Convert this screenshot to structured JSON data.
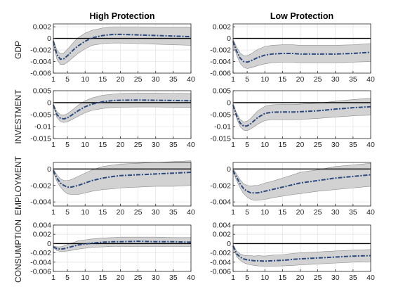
{
  "figure": {
    "columns": [
      "High Protection",
      "Low Protection"
    ],
    "rows": [
      "GDP",
      "INVESTMENT",
      "EMPLOYMENT",
      "CONSUMPTION"
    ]
  },
  "chart_data": [
    {
      "type": "line",
      "panel": "gdp-high",
      "column": "High Protection",
      "ylabel": "GDP",
      "xlim": [
        1,
        40
      ],
      "ylim": [
        -0.006,
        0.0025
      ],
      "xticks": [
        1,
        5,
        10,
        15,
        20,
        25,
        30,
        35,
        40
      ],
      "yticks": [
        0.002,
        0,
        -0.002,
        -0.004,
        -0.006
      ],
      "ytick_labels": [
        "0.002",
        "0",
        "-0.002",
        "-0.004",
        "-0.006"
      ],
      "grid": true,
      "series": [
        {
          "x": [
            1,
            2,
            3,
            4,
            5,
            6,
            7,
            8,
            10,
            12,
            15,
            18,
            20,
            25,
            30,
            35,
            40
          ],
          "values": [
            -0.0005,
            -0.0028,
            -0.0036,
            -0.0035,
            -0.003,
            -0.0024,
            -0.0018,
            -0.0013,
            -0.0005,
            0.0001,
            0.0005,
            0.0007,
            0.0007,
            0.0006,
            0.0005,
            0.0004,
            0.0003
          ],
          "lower": [
            -0.0008,
            -0.0036,
            -0.0045,
            -0.0045,
            -0.0041,
            -0.0036,
            -0.0031,
            -0.0026,
            -0.0018,
            -0.0012,
            -0.0009,
            -0.0008,
            -0.0008,
            -0.0009,
            -0.001,
            -0.0011,
            -0.0012
          ],
          "upper": [
            -0.0002,
            -0.002,
            -0.0027,
            -0.0025,
            -0.0019,
            -0.0012,
            -0.0005,
            0.0001,
            0.0009,
            0.0014,
            0.0018,
            0.002,
            0.002,
            0.002,
            0.0019,
            0.0019,
            0.0019
          ]
        }
      ]
    },
    {
      "type": "line",
      "panel": "gdp-low",
      "column": "Low Protection",
      "xlim": [
        1,
        40
      ],
      "ylim": [
        -0.006,
        0.0025
      ],
      "xticks": [
        1,
        5,
        10,
        15,
        20,
        25,
        30,
        35,
        40
      ],
      "yticks": [
        0.002,
        0,
        -0.002,
        -0.004,
        -0.006
      ],
      "ytick_labels": [
        "0.002",
        "0",
        "-0.002",
        "-0.004",
        "-0.006"
      ],
      "grid": true,
      "series": [
        {
          "x": [
            1,
            2,
            3,
            4,
            5,
            6,
            7,
            8,
            10,
            12,
            15,
            18,
            20,
            25,
            30,
            35,
            40
          ],
          "values": [
            -0.0005,
            -0.0022,
            -0.0034,
            -0.004,
            -0.0041,
            -0.0039,
            -0.0036,
            -0.0033,
            -0.0029,
            -0.0027,
            -0.0026,
            -0.0026,
            -0.0027,
            -0.0027,
            -0.0027,
            -0.0026,
            -0.0024
          ],
          "lower": [
            -0.0008,
            -0.0029,
            -0.0043,
            -0.005,
            -0.0052,
            -0.0051,
            -0.0049,
            -0.0047,
            -0.0044,
            -0.0042,
            -0.0041,
            -0.0041,
            -0.0042,
            -0.0042,
            -0.0042,
            -0.0041,
            -0.004
          ],
          "upper": [
            -0.0002,
            -0.0015,
            -0.0025,
            -0.003,
            -0.003,
            -0.0027,
            -0.0023,
            -0.0019,
            -0.0014,
            -0.0012,
            -0.0011,
            -0.0011,
            -0.0012,
            -0.0012,
            -0.0012,
            -0.0011,
            -0.0009
          ]
        }
      ]
    },
    {
      "type": "line",
      "panel": "inv-high",
      "column": "High Protection",
      "ylabel": "INVESTMENT",
      "xlim": [
        1,
        40
      ],
      "ylim": [
        -0.015,
        0.005
      ],
      "xticks": [
        1,
        5,
        10,
        15,
        20,
        25,
        30,
        35,
        40
      ],
      "yticks": [
        0.005,
        0,
        -0.005,
        -0.01,
        -0.015
      ],
      "ytick_labels": [
        "0.005",
        "0",
        "-0.005",
        "-0.01",
        "-0.015"
      ],
      "grid": true,
      "series": [
        {
          "x": [
            1,
            2,
            3,
            4,
            5,
            6,
            7,
            8,
            10,
            12,
            15,
            18,
            20,
            25,
            30,
            35,
            40
          ],
          "values": [
            -0.001,
            -0.005,
            -0.0065,
            -0.0068,
            -0.0063,
            -0.0054,
            -0.0044,
            -0.0034,
            -0.0017,
            -0.0006,
            0.0004,
            0.0009,
            0.001,
            0.0011,
            0.001,
            0.0009,
            0.0008
          ],
          "lower": [
            -0.0015,
            -0.0062,
            -0.0079,
            -0.0083,
            -0.008,
            -0.0073,
            -0.0065,
            -0.0057,
            -0.0042,
            -0.0032,
            -0.0024,
            -0.002,
            -0.0019,
            -0.0018,
            -0.0018,
            -0.0019,
            -0.002
          ],
          "upper": [
            -0.0005,
            -0.0038,
            -0.005,
            -0.0052,
            -0.0046,
            -0.0035,
            -0.0023,
            -0.0011,
            0.0008,
            0.002,
            0.0031,
            0.0036,
            0.0038,
            0.004,
            0.004,
            0.0039,
            0.0038
          ]
        }
      ]
    },
    {
      "type": "line",
      "panel": "inv-low",
      "column": "Low Protection",
      "xlim": [
        1,
        40
      ],
      "ylim": [
        -0.015,
        0.005
      ],
      "xticks": [
        1,
        5,
        10,
        15,
        20,
        25,
        30,
        35,
        40
      ],
      "yticks": [
        0.005,
        0,
        -0.005,
        -0.01,
        -0.015
      ],
      "ytick_labels": [
        "0.005",
        "0",
        "-0.005",
        "-0.01",
        "-0.015"
      ],
      "grid": true,
      "series": [
        {
          "x": [
            1,
            2,
            3,
            4,
            5,
            6,
            7,
            8,
            10,
            12,
            15,
            18,
            20,
            25,
            30,
            35,
            40
          ],
          "values": [
            -0.001,
            -0.0055,
            -0.0085,
            -0.0098,
            -0.0097,
            -0.0088,
            -0.0075,
            -0.0062,
            -0.0045,
            -0.004,
            -0.0039,
            -0.0039,
            -0.0038,
            -0.0034,
            -0.0027,
            -0.0021,
            -0.0017
          ],
          "lower": [
            -0.0015,
            -0.0066,
            -0.01,
            -0.0115,
            -0.0117,
            -0.011,
            -0.01,
            -0.009,
            -0.0075,
            -0.0071,
            -0.0071,
            -0.0071,
            -0.007,
            -0.0066,
            -0.006,
            -0.0055,
            -0.0052
          ],
          "upper": [
            -0.0005,
            -0.0044,
            -0.007,
            -0.0081,
            -0.0077,
            -0.0066,
            -0.005,
            -0.0034,
            -0.0015,
            -0.0009,
            -0.0007,
            -0.0007,
            -0.0006,
            -0.0002,
            0.0006,
            0.0013,
            0.0018
          ]
        }
      ]
    },
    {
      "type": "line",
      "panel": "emp-high",
      "column": "High Protection",
      "ylabel": "EMPLOYMENT",
      "xlim": [
        1,
        40
      ],
      "ylim": [
        -0.0045,
        0.0008
      ],
      "xticks": [
        1,
        5,
        10,
        15,
        20,
        25,
        30,
        35,
        40
      ],
      "yticks": [
        0,
        -0.002,
        -0.004
      ],
      "ytick_labels": [
        "0",
        "-0.002",
        "-0.004"
      ],
      "grid": true,
      "series": [
        {
          "x": [
            1,
            2,
            3,
            4,
            5,
            6,
            7,
            8,
            10,
            12,
            15,
            18,
            20,
            25,
            30,
            35,
            40
          ],
          "values": [
            -0.0002,
            -0.0011,
            -0.0017,
            -0.002,
            -0.0022,
            -0.0022,
            -0.0021,
            -0.002,
            -0.0017,
            -0.0014,
            -0.0011,
            -0.0009,
            -0.0008,
            -0.0007,
            -0.0006,
            -0.0005,
            -0.0004
          ],
          "lower": [
            -0.0004,
            -0.0015,
            -0.0022,
            -0.0027,
            -0.003,
            -0.0031,
            -0.0031,
            -0.0031,
            -0.0029,
            -0.0027,
            -0.0025,
            -0.0024,
            -0.0023,
            -0.0022,
            -0.0021,
            -0.0021,
            -0.002
          ],
          "upper": [
            0,
            -0.0007,
            -0.0012,
            -0.0014,
            -0.0014,
            -0.0013,
            -0.0011,
            -0.0009,
            -0.0005,
            -0.0001,
            0.0003,
            0.0005,
            0.0006,
            0.0007,
            0.0008,
            0.0009,
            0.001
          ]
        }
      ]
    },
    {
      "type": "line",
      "panel": "emp-low",
      "column": "Low Protection",
      "xlim": [
        1,
        40
      ],
      "ylim": [
        -0.0045,
        0.0008
      ],
      "xticks": [
        1,
        5,
        10,
        15,
        20,
        25,
        30,
        35,
        40
      ],
      "yticks": [
        0,
        -0.002,
        -0.004
      ],
      "ytick_labels": [
        "0",
        "-0.002",
        "-0.004"
      ],
      "grid": true,
      "series": [
        {
          "x": [
            1,
            2,
            3,
            4,
            5,
            6,
            7,
            8,
            10,
            12,
            15,
            18,
            20,
            25,
            30,
            35,
            40
          ],
          "values": [
            -0.0002,
            -0.001,
            -0.0018,
            -0.0024,
            -0.0027,
            -0.0029,
            -0.0029,
            -0.0029,
            -0.0027,
            -0.0025,
            -0.0022,
            -0.0019,
            -0.0017,
            -0.0014,
            -0.0011,
            -0.0009,
            -0.0007
          ],
          "lower": [
            -0.0004,
            -0.0014,
            -0.0023,
            -0.003,
            -0.0034,
            -0.0037,
            -0.0038,
            -0.0038,
            -0.0037,
            -0.0035,
            -0.0033,
            -0.0031,
            -0.003,
            -0.0027,
            -0.0025,
            -0.0023,
            -0.0021
          ],
          "upper": [
            0,
            -0.0006,
            -0.0013,
            -0.0018,
            -0.002,
            -0.0021,
            -0.002,
            -0.002,
            -0.0017,
            -0.0015,
            -0.0011,
            -0.0007,
            -0.0004,
            -0.0001,
            0.0003,
            0.0005,
            0.0007
          ]
        }
      ]
    },
    {
      "type": "line",
      "panel": "cons-high",
      "column": "High Protection",
      "ylabel": "CONSUMPTION",
      "xlim": [
        1,
        40
      ],
      "ylim": [
        -0.006,
        0.004
      ],
      "xticks": [
        1,
        5,
        10,
        15,
        20,
        25,
        30,
        35,
        40
      ],
      "yticks": [
        0.004,
        0.002,
        0,
        -0.002,
        -0.004,
        -0.006
      ],
      "ytick_labels": [
        "0.004",
        "0.002",
        "0",
        "-0.002",
        "-0.004",
        "-0.006"
      ],
      "grid": true,
      "series": [
        {
          "x": [
            1,
            2,
            3,
            4,
            5,
            6,
            7,
            8,
            10,
            12,
            15,
            18,
            20,
            25,
            30,
            35,
            40
          ],
          "values": [
            -0.0007,
            -0.0011,
            -0.0012,
            -0.0011,
            -0.0009,
            -0.0007,
            -0.0005,
            -0.0003,
            -0.0001,
            0.0001,
            0.0003,
            0.0004,
            0.0004,
            0.0005,
            0.0004,
            0.0004,
            0.0003
          ],
          "lower": [
            -0.0009,
            -0.0015,
            -0.0017,
            -0.0017,
            -0.0016,
            -0.0015,
            -0.0013,
            -0.0012,
            -0.001,
            -0.0008,
            -0.0007,
            -0.0006,
            -0.0006,
            -0.0006,
            -0.0006,
            -0.0006,
            -0.0006
          ],
          "upper": [
            -0.0005,
            -0.0007,
            -0.0007,
            -0.0005,
            -0.0002,
            0.0001,
            0.0003,
            0.0006,
            0.0008,
            0.001,
            0.0012,
            0.0013,
            0.0014,
            0.0014,
            0.0014,
            0.0013,
            0.0013
          ]
        }
      ]
    },
    {
      "type": "line",
      "panel": "cons-low",
      "column": "Low Protection",
      "xlim": [
        1,
        40
      ],
      "ylim": [
        -0.006,
        0.004
      ],
      "xticks": [
        1,
        5,
        10,
        15,
        20,
        25,
        30,
        35,
        40
      ],
      "yticks": [
        0.004,
        0.002,
        0,
        -0.002,
        -0.004,
        -0.006
      ],
      "ytick_labels": [
        "0.004",
        "0.002",
        "0",
        "-0.002",
        "-0.004",
        "-0.006"
      ],
      "grid": true,
      "series": [
        {
          "x": [
            1,
            2,
            3,
            4,
            5,
            6,
            7,
            8,
            10,
            12,
            15,
            18,
            20,
            25,
            30,
            35,
            40
          ],
          "values": [
            -0.0005,
            -0.0022,
            -0.0029,
            -0.0033,
            -0.0035,
            -0.0036,
            -0.0037,
            -0.0037,
            -0.0038,
            -0.0037,
            -0.0036,
            -0.0034,
            -0.0033,
            -0.0031,
            -0.0029,
            -0.0027,
            -0.0026
          ],
          "lower": [
            -0.0008,
            -0.0028,
            -0.0036,
            -0.0041,
            -0.0044,
            -0.0046,
            -0.0047,
            -0.0048,
            -0.0049,
            -0.0049,
            -0.0048,
            -0.0047,
            -0.0046,
            -0.0044,
            -0.0042,
            -0.004,
            -0.0039
          ],
          "upper": [
            -0.0002,
            -0.0016,
            -0.0022,
            -0.0025,
            -0.0026,
            -0.0026,
            -0.0027,
            -0.0026,
            -0.0027,
            -0.0025,
            -0.0024,
            -0.0021,
            -0.002,
            -0.0018,
            -0.0016,
            -0.0014,
            -0.0013
          ]
        }
      ]
    }
  ],
  "style": {
    "line_color": "#2a4a7f",
    "band_color": "#d2d2d2",
    "band_edge": "#8c8c8c",
    "zero_line": "#000000",
    "grid_color": "#e6e6e6",
    "axis_color": "#262626"
  }
}
